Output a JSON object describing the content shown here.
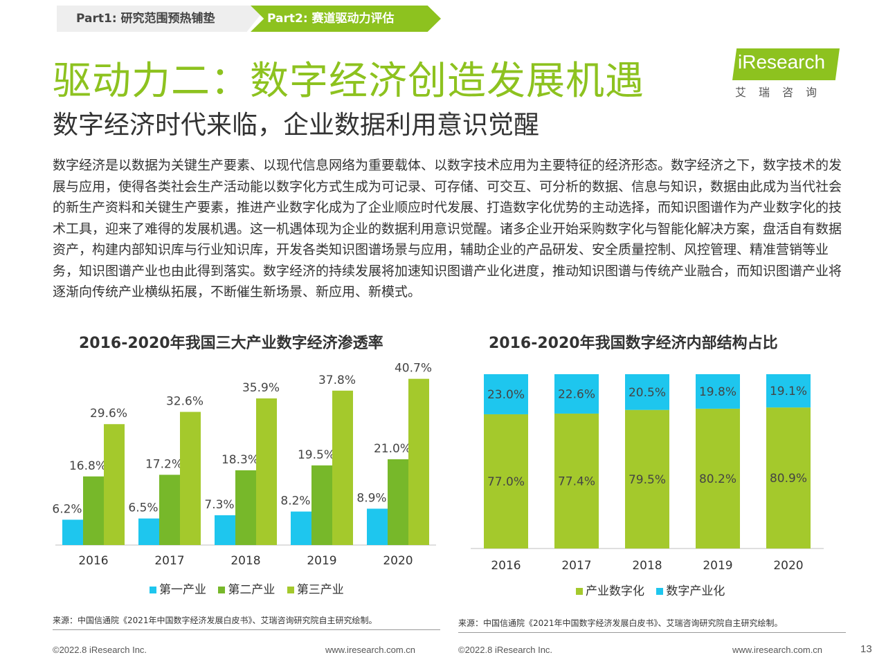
{
  "nav": {
    "tab1": "Part1: 研究范围预热铺垫",
    "tab2": "Part2: 赛道驱动力评估"
  },
  "title": "驱动力二：数字经济创造发展机遇",
  "subtitle": "数字经济时代来临，企业数据利用意识觉醒",
  "logo": {
    "brand": "iResearch",
    "sub": "艾瑞咨询"
  },
  "paragraph": "数字经济是以数据为关键生产要素、以现代信息网络为重要载体、以数字技术应用为主要特征的经济形态。数字经济之下，数字技术的发展与应用，使得各类社会生产活动能以数字化方式生成为可记录、可存储、可交互、可分析的数据、信息与知识，数据由此成为当代社会的新生产资料和关键生产要素，推进产业数字化成为了企业顺应时代发展、打造数字化优势的主动选择，而知识图谱作为产业数字化的技术工具，迎来了难得的发展机遇。这一机遇体现为企业的数据利用意识觉醒。诸多企业开始采购数字化与智能化解决方案，盘活自有数据资产，构建内部知识库与行业知识库，开发各类知识图谱场景与应用，辅助企业的产品研发、安全质量控制、风控管理、精准营销等业务，知识图谱产业也由此得到落实。数字经济的持续发展将加速知识图谱产业化进度，推动知识图谱与传统产业融合，而知识图谱产业将逐渐向传统产业横纵拓展，不断催生新场景、新应用、新模式。",
  "chart_data": [
    {
      "type": "bar",
      "title": "2016-2020年我国三大产业数字经济渗透率",
      "categories": [
        "2016",
        "2017",
        "2018",
        "2019",
        "2020"
      ],
      "series": [
        {
          "name": "第一产业",
          "values": [
            6.2,
            6.5,
            7.3,
            8.2,
            8.9
          ],
          "color": "#1ec6ee"
        },
        {
          "name": "第二产业",
          "values": [
            16.8,
            17.2,
            18.3,
            19.5,
            21.0
          ],
          "color": "#77b82a"
        },
        {
          "name": "第三产业",
          "values": [
            29.6,
            32.6,
            35.9,
            37.8,
            40.7
          ],
          "color": "#a4c92c"
        }
      ],
      "value_suffix": "%",
      "ylim": [
        0,
        42
      ],
      "grid": false,
      "legend": "bottom"
    },
    {
      "type": "bar",
      "stacked": true,
      "title": "2016-2020年我国数字经济内部结构占比",
      "categories": [
        "2016",
        "2017",
        "2018",
        "2019",
        "2020"
      ],
      "series": [
        {
          "name": "产业数字化",
          "values": [
            77.0,
            77.4,
            79.5,
            80.2,
            80.9
          ],
          "color": "#a4c92c"
        },
        {
          "name": "数字产业化",
          "values": [
            23.0,
            22.6,
            20.5,
            19.8,
            19.1
          ],
          "color": "#1ec6ee"
        }
      ],
      "value_suffix": "%",
      "ylim": [
        0,
        100
      ],
      "grid": false,
      "legend": "bottom"
    }
  ],
  "source_left": "来源：中国信通院《2021年中国数字经济发展白皮书》、艾瑞咨询研究院自主研究绘制。",
  "source_right": "来源：中国信通院《2021年中国数字经济发展白皮书》、艾瑞咨询研究院自主研究绘制。",
  "footer": {
    "copyright_left": "©2022.8 iResearch Inc.",
    "url_left": "www.iresearch.com.cn",
    "copyright_right": "©2022.8 iResearch Inc.",
    "url_right": "www.iresearch.com.cn",
    "page_number": "13"
  }
}
